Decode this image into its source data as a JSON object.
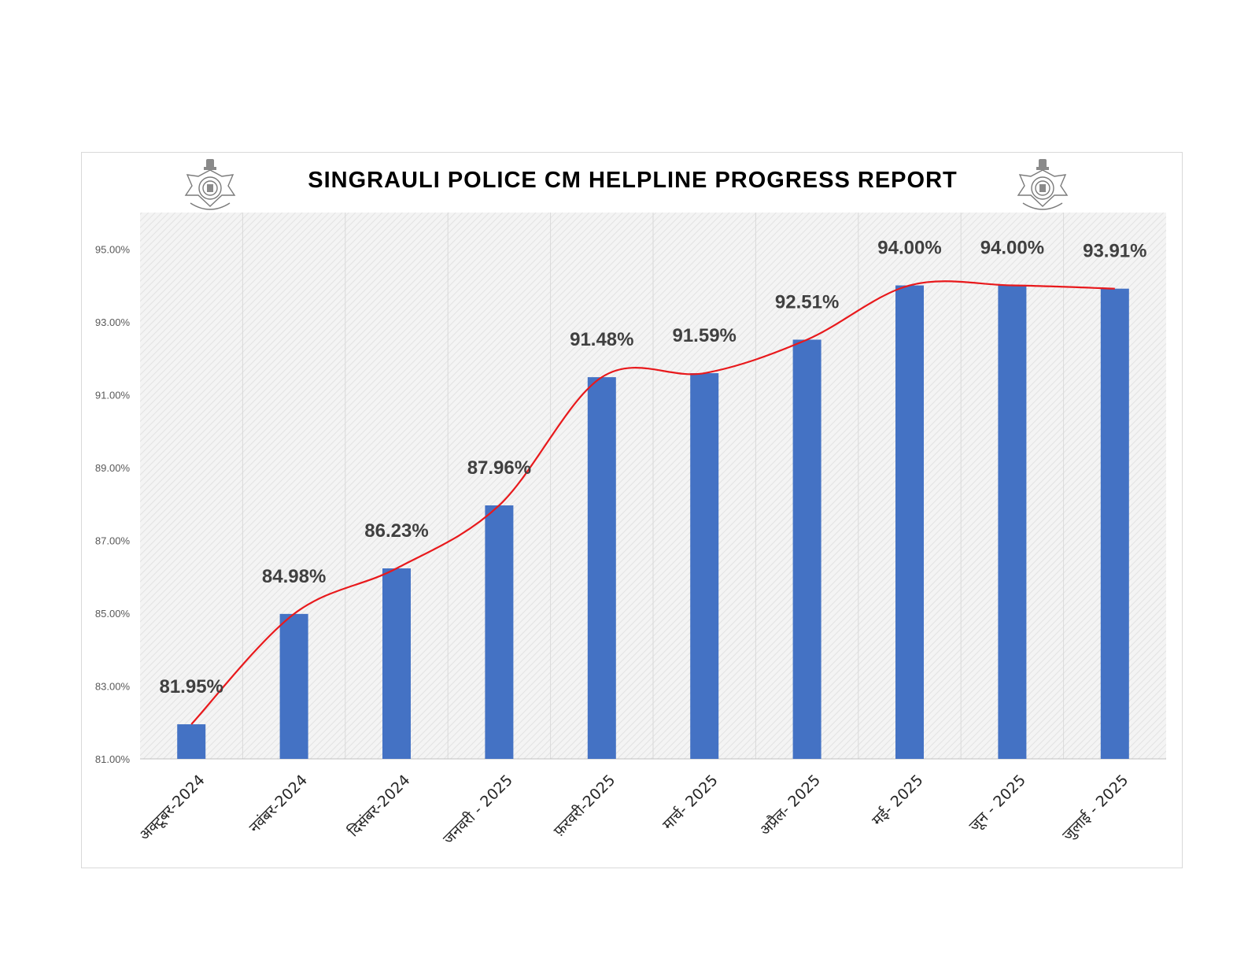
{
  "chart_data": {
    "type": "bar",
    "title": "SINGRAULI POLICE CM HELPLINE PROGRESS REPORT",
    "xlabel": "",
    "ylabel": "",
    "categories": [
      "अक्टूबर-2024",
      "नवंबर-2024",
      "दिसंबर-2024",
      "जनवरी - 2025",
      "फ़रवरी-2025",
      "मार्च- 2025",
      "अप्रैल- 2025",
      "मई- 2025",
      "जून - 2025",
      "जुलाई - 2025"
    ],
    "values": [
      81.95,
      84.98,
      86.23,
      87.96,
      91.48,
      91.59,
      92.51,
      94.0,
      94.0,
      93.91
    ],
    "data_labels": [
      "81.95%",
      "84.98%",
      "86.23%",
      "87.96%",
      "91.48%",
      "91.59%",
      "92.51%",
      "94.00%",
      "94.00%",
      "93.91%"
    ],
    "yticks": [
      81,
      83,
      85,
      87,
      89,
      91,
      93,
      95
    ],
    "ytick_labels": [
      "81.00%",
      "83.00%",
      "85.00%",
      "87.00%",
      "89.00%",
      "91.00%",
      "93.00%",
      "95.00%"
    ],
    "ylim": [
      81,
      96
    ],
    "trend_line": true,
    "grid": "vertical",
    "legend": "none",
    "colors": {
      "bar": "#4472c4",
      "trend": "#e8191c",
      "plot_bg": "#f2f2f2",
      "grid": "#d9d9d9"
    }
  },
  "logos": {
    "left": "mp-police-emblem-icon",
    "right": "mp-police-emblem-icon"
  }
}
